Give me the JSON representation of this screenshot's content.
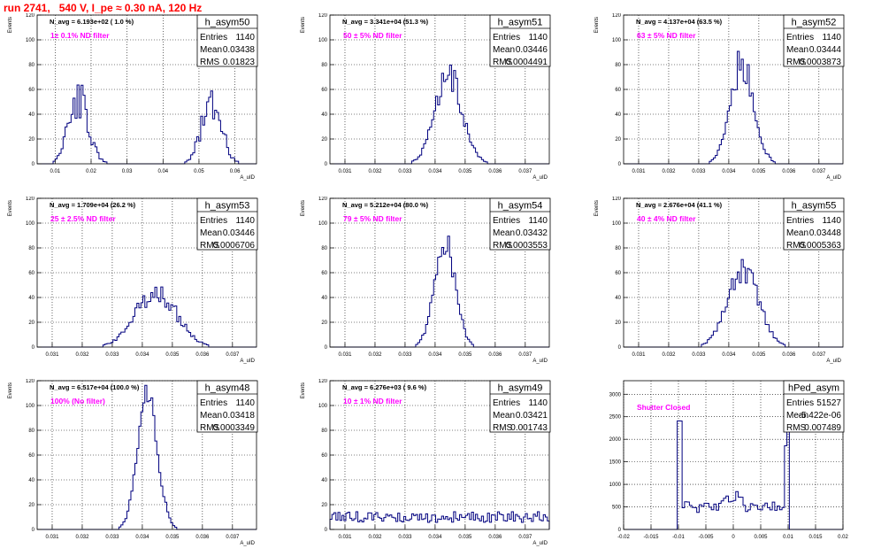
{
  "run_title": "run 2741,   540 V, I_pe ≈ 0.30 nA, 120 Hz",
  "colors": {
    "title": "#ff0000",
    "histogram": "#00007f",
    "annotation": "#ff00ff",
    "frame": "#000000"
  },
  "chart_data": [
    {
      "type": "histogram",
      "name": "h_asym50",
      "navg": "N_avg = 6.193e+02 ( 1.0 %)",
      "filter": "1± 0.1% ND filter",
      "stats": [
        [
          "Entries",
          "1140"
        ],
        [
          "Mean",
          "0.03438"
        ],
        [
          "RMS",
          "0.01823"
        ]
      ],
      "ylabel": "Events",
      "xlabel": "A_uID",
      "xlim": [
        0.005,
        0.066
      ],
      "ylim": [
        0,
        120
      ],
      "xticks": [
        0.01,
        0.02,
        0.03,
        0.04,
        0.05,
        0.06
      ],
      "xticklabels": [
        "0.01",
        "0.02",
        "0.03",
        "0.04",
        "0.05",
        "0.06"
      ],
      "yticks": [
        0,
        20,
        40,
        60,
        80,
        100,
        120
      ],
      "yticklabels": [
        "0",
        "20",
        "40",
        "60",
        "80",
        "100",
        "120"
      ],
      "shape": [
        [
          0.0165,
          0.0028,
          52
        ],
        [
          0.0535,
          0.0028,
          48
        ]
      ],
      "noise": 0.3,
      "seed": 50
    },
    {
      "type": "histogram",
      "name": "h_asym51",
      "navg": "N_avg = 3.341e+04 (51.3 %)",
      "filter": "50 ± 5% ND filter",
      "stats": [
        [
          "Entries",
          "1140"
        ],
        [
          "Mean",
          "0.03446"
        ],
        [
          "RMS",
          "0.0004491"
        ]
      ],
      "ylabel": "Events",
      "xlabel": "A_uID",
      "xlim": [
        0.0305,
        0.0378
      ],
      "ylim": [
        0,
        120
      ],
      "xticks": [
        0.031,
        0.032,
        0.033,
        0.034,
        0.035,
        0.036,
        0.037
      ],
      "xticklabels": [
        "0.031",
        "0.032",
        "0.033",
        "0.034",
        "0.035",
        "0.036",
        "0.037"
      ],
      "yticks": [
        0,
        20,
        40,
        60,
        80,
        100,
        120
      ],
      "yticklabels": [
        "0",
        "20",
        "40",
        "60",
        "80",
        "100",
        "120"
      ],
      "shape": [
        [
          0.03446,
          0.00045,
          72
        ]
      ],
      "noise": 0.18,
      "seed": 51
    },
    {
      "type": "histogram",
      "name": "h_asym52",
      "navg": "N_avg = 4.137e+04 (63.5 %)",
      "filter": "63 ± 5% ND filter",
      "stats": [
        [
          "Entries",
          "1140"
        ],
        [
          "Mean",
          "0.03444"
        ],
        [
          "RMS",
          "0.0003873"
        ]
      ],
      "ylabel": "Events",
      "xlabel": "A_uID",
      "xlim": [
        0.0305,
        0.0378
      ],
      "ylim": [
        0,
        120
      ],
      "xticks": [
        0.031,
        0.032,
        0.033,
        0.034,
        0.035,
        0.036,
        0.037
      ],
      "xticklabels": [
        "0.031",
        "0.032",
        "0.033",
        "0.034",
        "0.035",
        "0.036",
        "0.037"
      ],
      "yticks": [
        0,
        20,
        40,
        60,
        80,
        100,
        120
      ],
      "yticklabels": [
        "0",
        "20",
        "40",
        "60",
        "80",
        "100",
        "120"
      ],
      "shape": [
        [
          0.03444,
          0.00039,
          82
        ]
      ],
      "noise": 0.18,
      "seed": 52
    },
    {
      "type": "histogram",
      "name": "h_asym53",
      "navg": "N_avg = 1.709e+04 (26.2 %)",
      "filter": "25 ± 2.5% ND filter",
      "stats": [
        [
          "Entries",
          "1140"
        ],
        [
          "Mean",
          "0.03446"
        ],
        [
          "RMS",
          "0.0006706"
        ]
      ],
      "ylabel": "Events",
      "xlabel": "A_uID",
      "xlim": [
        0.0305,
        0.0378
      ],
      "ylim": [
        0,
        120
      ],
      "xticks": [
        0.031,
        0.032,
        0.033,
        0.034,
        0.035,
        0.036,
        0.037
      ],
      "xticklabels": [
        "0.031",
        "0.032",
        "0.033",
        "0.034",
        "0.035",
        "0.036",
        "0.037"
      ],
      "yticks": [
        0,
        20,
        40,
        60,
        80,
        100,
        120
      ],
      "yticklabels": [
        "0",
        "20",
        "40",
        "60",
        "80",
        "100",
        "120"
      ],
      "shape": [
        [
          0.03446,
          0.00067,
          45
        ]
      ],
      "noise": 0.2,
      "seed": 53
    },
    {
      "type": "histogram",
      "name": "h_asym54",
      "navg": "N_avg = 5.212e+04 (80.0 %)",
      "filter": "79 ± 5% ND filter",
      "stats": [
        [
          "Entries",
          "1140"
        ],
        [
          "Mean",
          "0.03432"
        ],
        [
          "RMS",
          "0.0003553"
        ]
      ],
      "ylabel": "Events",
      "xlabel": "A_uID",
      "xlim": [
        0.0305,
        0.0378
      ],
      "ylim": [
        0,
        120
      ],
      "xticks": [
        0.031,
        0.032,
        0.033,
        0.034,
        0.035,
        0.036,
        0.037
      ],
      "xticklabels": [
        "0.031",
        "0.032",
        "0.033",
        "0.034",
        "0.035",
        "0.036",
        "0.037"
      ],
      "yticks": [
        0,
        20,
        40,
        60,
        80,
        100,
        120
      ],
      "yticklabels": [
        "0",
        "20",
        "40",
        "60",
        "80",
        "100",
        "120"
      ],
      "shape": [
        [
          0.03432,
          0.00034,
          88
        ]
      ],
      "noise": 0.16,
      "seed": 54
    },
    {
      "type": "histogram",
      "name": "h_asym55",
      "navg": "N_avg = 2.676e+04 (41.1 %)",
      "filter": "40 ± 4% ND filter",
      "stats": [
        [
          "Entries",
          "1140"
        ],
        [
          "Mean",
          "0.03448"
        ],
        [
          "RMS",
          "0.0005363"
        ]
      ],
      "ylabel": "Events",
      "xlabel": "A_uID",
      "xlim": [
        0.0305,
        0.0378
      ],
      "ylim": [
        0,
        120
      ],
      "xticks": [
        0.031,
        0.032,
        0.033,
        0.034,
        0.035,
        0.036,
        0.037
      ],
      "xticklabels": [
        "0.031",
        "0.032",
        "0.033",
        "0.034",
        "0.035",
        "0.036",
        "0.037"
      ],
      "yticks": [
        0,
        20,
        40,
        60,
        80,
        100,
        120
      ],
      "yticklabels": [
        "0",
        "20",
        "40",
        "60",
        "80",
        "100",
        "120"
      ],
      "shape": [
        [
          0.03448,
          0.00052,
          62
        ]
      ],
      "noise": 0.18,
      "seed": 55
    },
    {
      "type": "histogram",
      "name": "h_asym48",
      "navg": "N_avg = 6.517e+04 (100.0 %)",
      "filter": "100% (No filter)",
      "stats": [
        [
          "Entries",
          "1140"
        ],
        [
          "Mean",
          "0.03418"
        ],
        [
          "RMS",
          "0.0003349"
        ]
      ],
      "ylabel": "Events",
      "xlabel": "A_uID",
      "xlim": [
        0.0305,
        0.0378
      ],
      "ylim": [
        0,
        120
      ],
      "xticks": [
        0.031,
        0.032,
        0.033,
        0.034,
        0.035,
        0.036,
        0.037
      ],
      "xticklabels": [
        "0.031",
        "0.032",
        "0.033",
        "0.034",
        "0.035",
        "0.036",
        "0.037"
      ],
      "yticks": [
        0,
        20,
        40,
        60,
        80,
        100,
        120
      ],
      "yticklabels": [
        "0",
        "20",
        "40",
        "60",
        "80",
        "100",
        "120"
      ],
      "shape": [
        [
          0.03418,
          0.00033,
          108
        ]
      ],
      "noise": 0.12,
      "seed": 48
    },
    {
      "type": "histogram",
      "name": "h_asym49",
      "navg": "N_avg = 6.276e+03 ( 9.6 %)",
      "filter": "10 ± 1% ND filter",
      "stats": [
        [
          "Entries",
          "1140"
        ],
        [
          "Mean",
          "0.03421"
        ],
        [
          "RMS",
          "0.001743"
        ]
      ],
      "ylabel": "Events",
      "xlabel": "A_uID",
      "xlim": [
        0.0305,
        0.0378
      ],
      "ylim": [
        0,
        120
      ],
      "xticks": [
        0.031,
        0.032,
        0.033,
        0.034,
        0.035,
        0.036,
        0.037
      ],
      "xticklabels": [
        "0.031",
        "0.032",
        "0.033",
        "0.034",
        "0.035",
        "0.036",
        "0.037"
      ],
      "yticks": [
        0,
        20,
        40,
        60,
        80,
        100,
        120
      ],
      "yticklabels": [
        "0",
        "20",
        "40",
        "60",
        "80",
        "100",
        "120"
      ],
      "flat": 10,
      "noise": 0.45,
      "seed": 49
    },
    {
      "type": "histogram",
      "name": "hPed_asym",
      "navg": "",
      "filter": "Shutter Closed",
      "stats": [
        [
          "Entries",
          "51527"
        ],
        [
          "Mean",
          "-5.422e-06"
        ],
        [
          "RMS",
          "0.007489"
        ]
      ],
      "ylabel": "",
      "xlabel": "",
      "xlim": [
        -0.02,
        0.02
      ],
      "ylim": [
        0,
        3300
      ],
      "xticks": [
        -0.02,
        -0.015,
        -0.01,
        -0.005,
        0,
        0.005,
        0.01,
        0.015,
        0.02
      ],
      "xticklabels": [
        "-0.02",
        "-0.015",
        "-0.01",
        "-0.005",
        "0",
        "0.005",
        "0.01",
        "0.015",
        "0.02"
      ],
      "yticks": [
        0,
        500,
        1000,
        1500,
        2000,
        2500,
        3000
      ],
      "yticklabels": [
        "0",
        "500",
        "1000",
        "1500",
        "2000",
        "2500",
        "3000"
      ],
      "pedestal": true,
      "seed": 7
    }
  ]
}
